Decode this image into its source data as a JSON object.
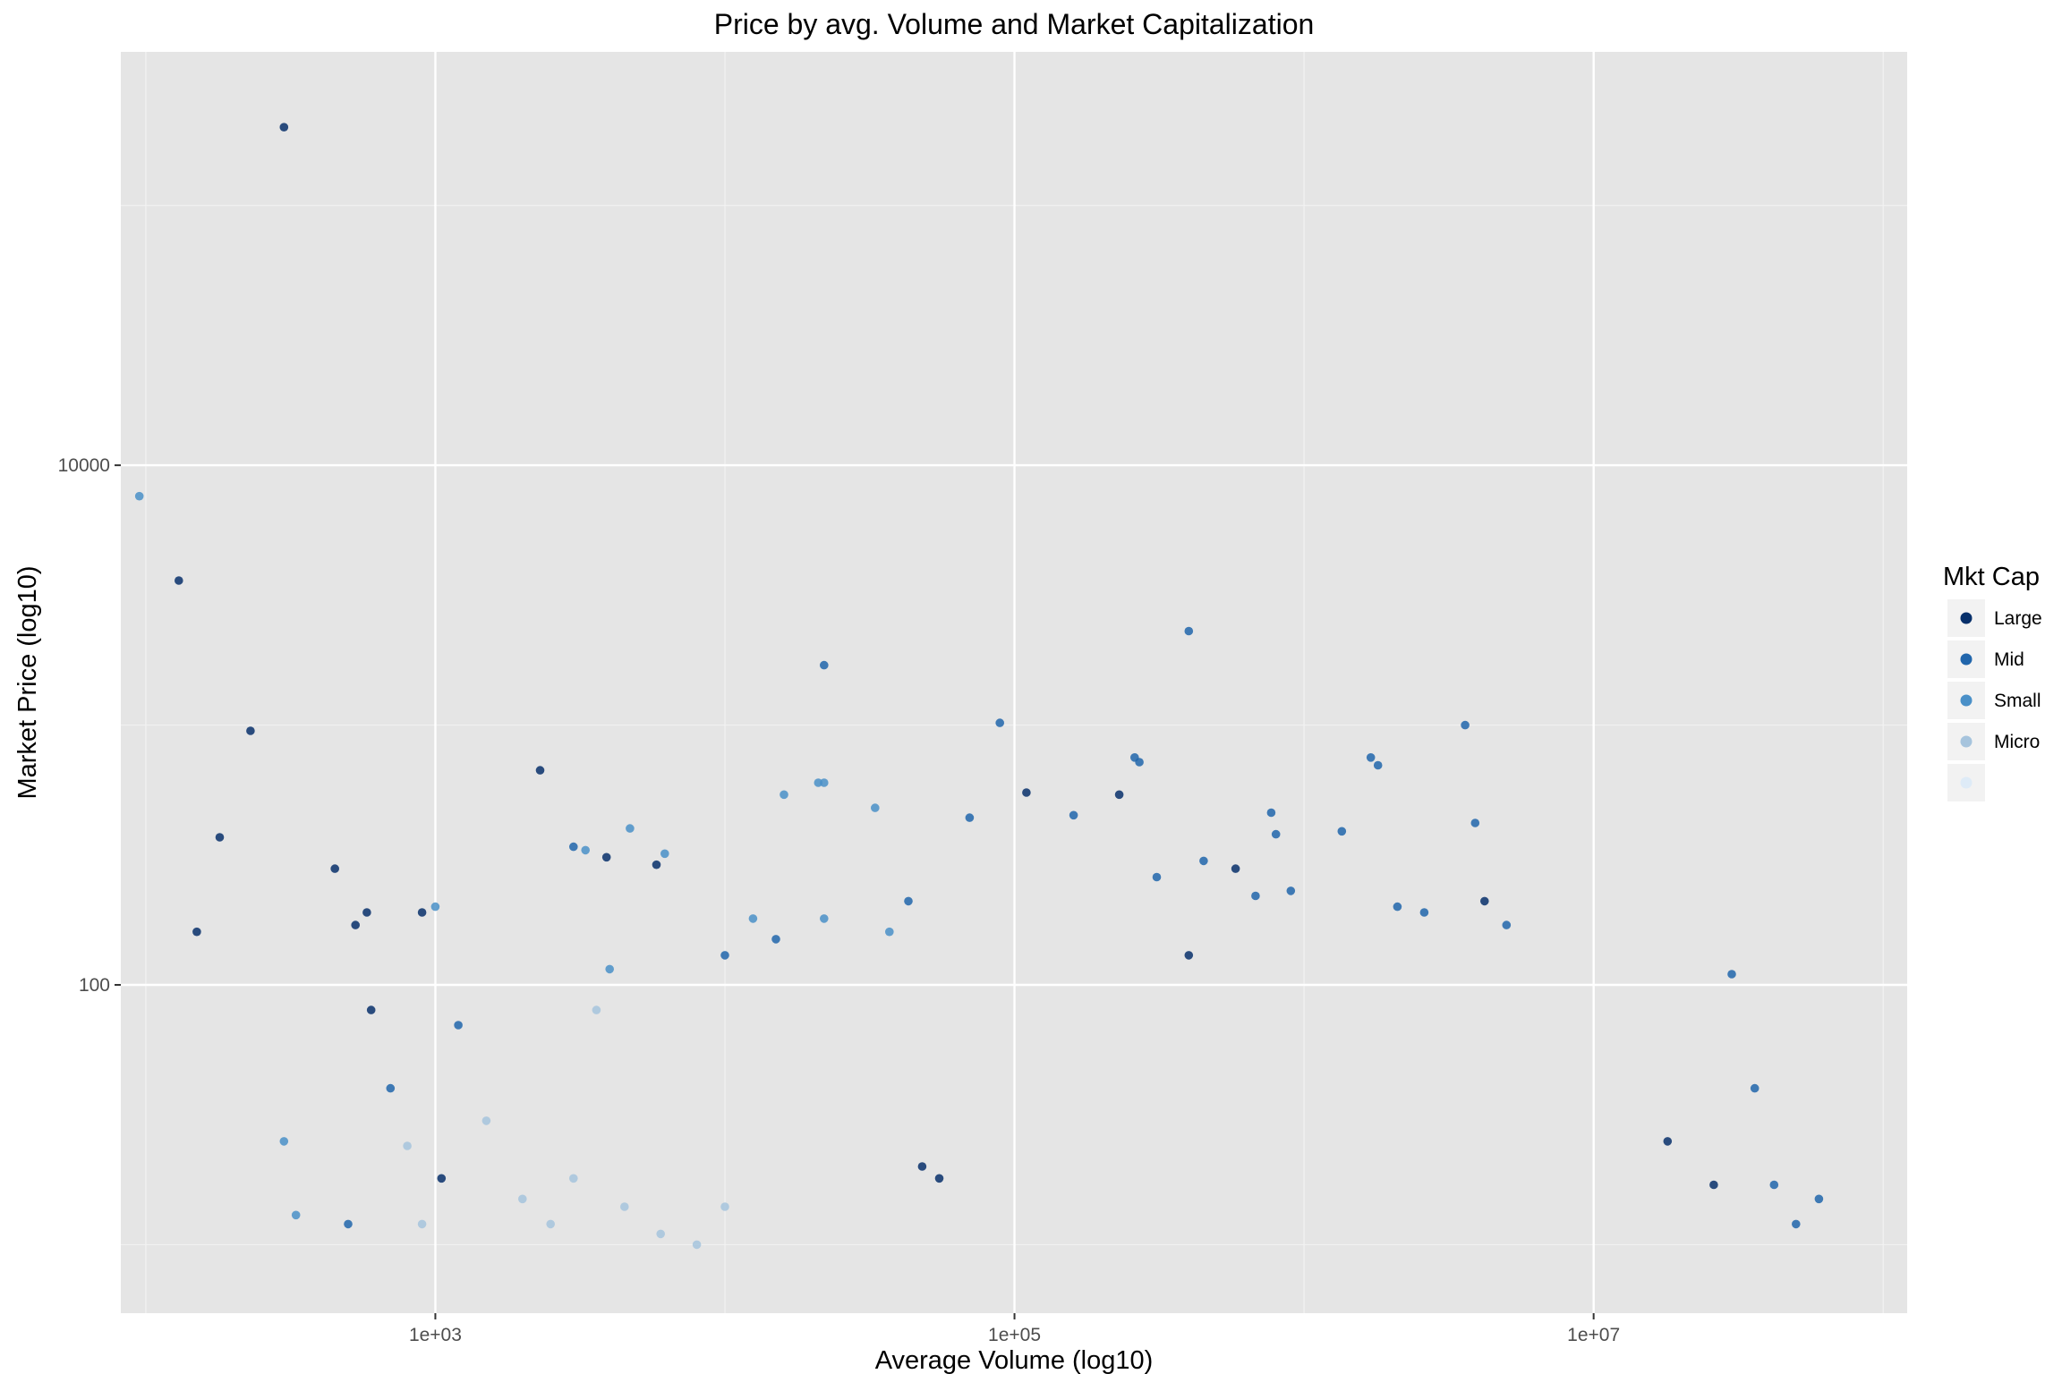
{
  "chart_data": {
    "type": "scatter",
    "title": "Price by avg. Volume and Market Capitalization",
    "xlabel": "Average Volume (log10)",
    "ylabel": "Market Price (log10)",
    "x_scale": "log10",
    "y_scale": "log10",
    "xlim": [
      82,
      121000000
    ],
    "ylim": [
      5.45,
      390000
    ],
    "x_ticks": [
      {
        "value": 1000,
        "label": "1e+03"
      },
      {
        "value": 100000,
        "label": "1e+05"
      },
      {
        "value": 10000000,
        "label": "1e+07"
      }
    ],
    "y_ticks": [
      {
        "value": 100,
        "label": "100"
      },
      {
        "value": 10000,
        "label": "10000"
      }
    ],
    "x_minor_grid": [
      100,
      10000,
      1000000,
      100000000
    ],
    "y_minor_grid": [
      10,
      1000,
      100000
    ],
    "legend": {
      "title": "Mkt Cap",
      "position": "right",
      "entries": [
        {
          "label": "Large",
          "color": "#08306b"
        },
        {
          "label": "Mid",
          "color": "#2166ac"
        },
        {
          "label": "Small",
          "color": "#4a90c8"
        },
        {
          "label": "Micro",
          "color": "#a6c4dd"
        },
        {
          "label": "",
          "color": "#deebf7"
        }
      ]
    },
    "series": [
      {
        "name": "Large",
        "color": "#08306b",
        "points": [
          [
            300,
            200000
          ],
          [
            130,
            3600
          ],
          [
            150,
            160
          ],
          [
            230,
            950
          ],
          [
            180,
            370
          ],
          [
            450,
            280
          ],
          [
            530,
            170
          ],
          [
            580,
            190
          ],
          [
            600,
            80
          ],
          [
            900,
            190
          ],
          [
            1050,
            18
          ],
          [
            2300,
            670
          ],
          [
            3900,
            310
          ],
          [
            5800,
            290
          ],
          [
            48000,
            20
          ],
          [
            55000,
            18
          ],
          [
            110000,
            550
          ],
          [
            230000,
            540
          ],
          [
            400000,
            130
          ],
          [
            580000,
            280
          ],
          [
            4200000,
            210
          ],
          [
            18000000,
            25
          ],
          [
            26000000,
            17
          ]
        ]
      },
      {
        "name": "Mid",
        "color": "#2166ac",
        "points": [
          [
            22000,
            1700
          ],
          [
            89000,
            1020
          ],
          [
            260000,
            750
          ],
          [
            400000,
            2300
          ],
          [
            1700000,
            750
          ],
          [
            1800000,
            700
          ],
          [
            3600000,
            1000
          ],
          [
            3900000,
            420
          ],
          [
            1350000,
            390
          ],
          [
            770000,
            460
          ],
          [
            270000,
            720
          ],
          [
            160000,
            450
          ],
          [
            310000,
            260
          ],
          [
            450000,
            300
          ],
          [
            680000,
            220
          ],
          [
            900000,
            230
          ],
          [
            2100000,
            200
          ],
          [
            2600000,
            190
          ],
          [
            5000000,
            170
          ],
          [
            800000,
            380
          ],
          [
            70000,
            440
          ],
          [
            43000,
            210
          ],
          [
            15000,
            150
          ],
          [
            10000,
            130
          ],
          [
            3000,
            340
          ],
          [
            1200,
            70
          ],
          [
            700,
            40
          ],
          [
            500,
            12
          ],
          [
            42000000,
            17
          ],
          [
            60000000,
            15
          ],
          [
            36000000,
            40
          ],
          [
            30000000,
            110
          ],
          [
            50000000,
            12
          ]
        ]
      },
      {
        "name": "Small",
        "color": "#4a90c8",
        "points": [
          [
            95,
            7600
          ],
          [
            300,
            25
          ],
          [
            330,
            13
          ],
          [
            1000,
            200
          ],
          [
            3300,
            330
          ],
          [
            4700,
            400
          ],
          [
            6200,
            320
          ],
          [
            16000,
            540
          ],
          [
            22000,
            600
          ],
          [
            22000,
            180
          ],
          [
            33000,
            480
          ],
          [
            37000,
            160
          ],
          [
            12500,
            180
          ],
          [
            4000,
            115
          ],
          [
            21000,
            600
          ]
        ]
      },
      {
        "name": "Micro",
        "color": "#a6c4dd",
        "points": [
          [
            800,
            24
          ],
          [
            900,
            12
          ],
          [
            1500,
            30
          ],
          [
            2000,
            15
          ],
          [
            2500,
            12
          ],
          [
            3000,
            18
          ],
          [
            3600,
            80
          ],
          [
            4500,
            14
          ],
          [
            6000,
            11
          ],
          [
            8000,
            10
          ],
          [
            10000,
            14
          ]
        ]
      }
    ]
  }
}
